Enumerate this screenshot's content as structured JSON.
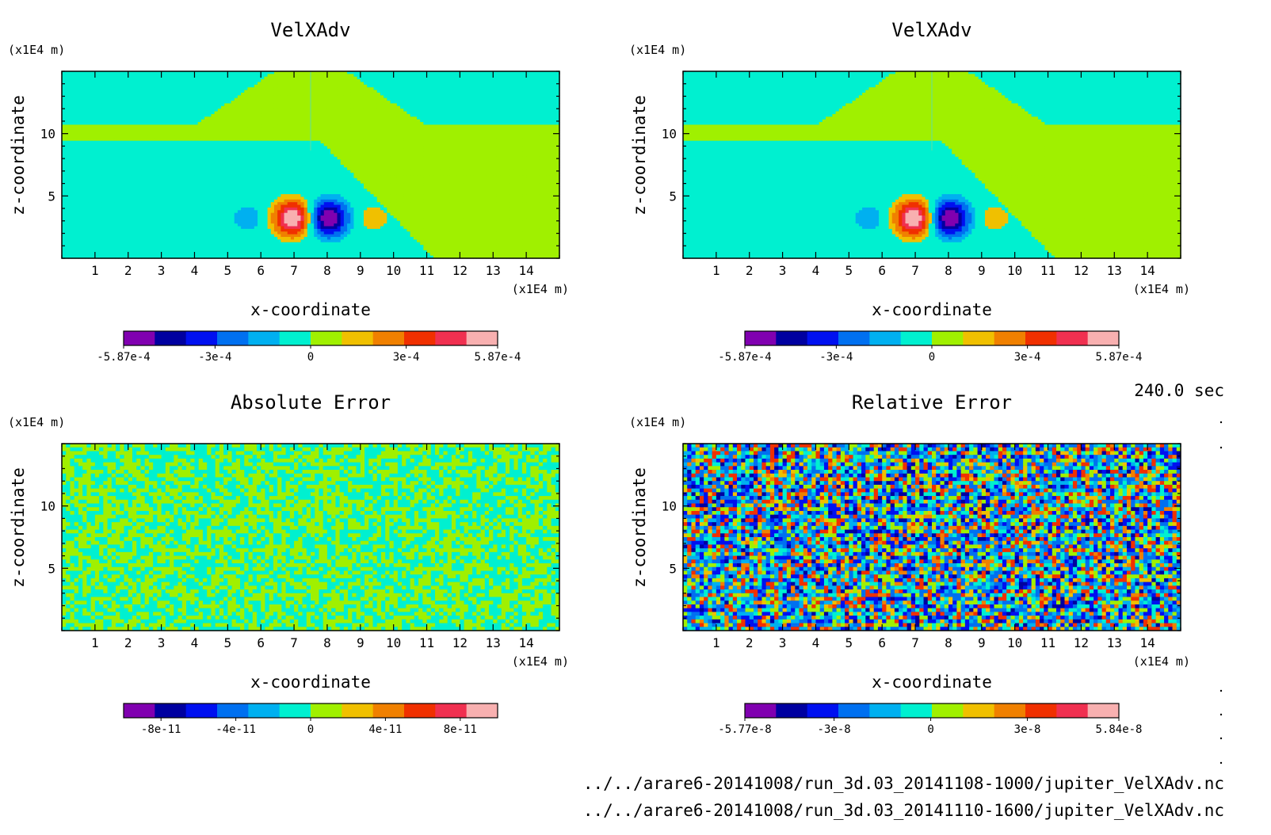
{
  "colormap_colors": [
    "#8000b0",
    "#0000a0",
    "#0010f0",
    "#0070f0",
    "#00b0f0",
    "#00f0d0",
    "#a0f000",
    "#f0c000",
    "#f08000",
    "#f03000",
    "#f03050",
    "#f8b0b0"
  ],
  "time_label": "240.0 sec",
  "file_paths": [
    "../../arare6-20141008/run_3d.03_20141108-1000/jupiter_VelXAdv.nc",
    "../../arare6-20141008/run_3d.03_20141110-1600/jupiter_VelXAdv.nc"
  ],
  "chart_data": [
    {
      "type": "heatmap",
      "title": "VelXAdv",
      "xlabel": "x-coordinate",
      "ylabel": "z-coordinate",
      "x_unit": "(x1E4 m)",
      "y_unit": "(x1E4 m)",
      "xlim": [
        0,
        15
      ],
      "ylim": [
        0,
        15
      ],
      "x_ticks": [
        1,
        2,
        3,
        4,
        5,
        6,
        7,
        8,
        9,
        10,
        11,
        12,
        13,
        14
      ],
      "y_ticks": [
        5,
        10
      ],
      "field": "velxadv",
      "colorbar": {
        "ticks": [
          -0.000587,
          -0.0003,
          0,
          0.0003,
          0.000587
        ],
        "labels": [
          "-5.87e-4",
          "-3e-4",
          "0",
          "3e-4",
          "5.87e-4"
        ],
        "range": [
          -0.000587,
          0.000587
        ]
      }
    },
    {
      "type": "heatmap",
      "title": "VelXAdv",
      "xlabel": "x-coordinate",
      "ylabel": "z-coordinate",
      "x_unit": "(x1E4 m)",
      "y_unit": "(x1E4 m)",
      "xlim": [
        0,
        15
      ],
      "ylim": [
        0,
        15
      ],
      "x_ticks": [
        1,
        2,
        3,
        4,
        5,
        6,
        7,
        8,
        9,
        10,
        11,
        12,
        13,
        14
      ],
      "y_ticks": [
        5,
        10
      ],
      "field": "velxadv",
      "colorbar": {
        "ticks": [
          -0.000587,
          -0.0003,
          0,
          0.0003,
          0.000587
        ],
        "labels": [
          "-5.87e-4",
          "-3e-4",
          "0",
          "3e-4",
          "5.87e-4"
        ],
        "range": [
          -0.000587,
          0.000587
        ]
      }
    },
    {
      "type": "heatmap",
      "title": "Absolute Error",
      "xlabel": "x-coordinate",
      "ylabel": "z-coordinate",
      "x_unit": "(x1E4 m)",
      "y_unit": "(x1E4 m)",
      "xlim": [
        0,
        15
      ],
      "ylim": [
        0,
        15
      ],
      "x_ticks": [
        1,
        2,
        3,
        4,
        5,
        6,
        7,
        8,
        9,
        10,
        11,
        12,
        13,
        14
      ],
      "y_ticks": [
        5,
        10
      ],
      "field": "abs_noise",
      "colorbar": {
        "ticks": [
          -8e-11,
          -4e-11,
          0,
          4e-11,
          8e-11
        ],
        "labels": [
          "-8e-11",
          "-4e-11",
          "0",
          "4e-11",
          "8e-11"
        ],
        "range": [
          -1e-10,
          1e-10
        ]
      }
    },
    {
      "type": "heatmap",
      "title": "Relative Error",
      "xlabel": "x-coordinate",
      "ylabel": "z-coordinate",
      "x_unit": "(x1E4 m)",
      "y_unit": "(x1E4 m)",
      "xlim": [
        0,
        15
      ],
      "ylim": [
        0,
        15
      ],
      "x_ticks": [
        1,
        2,
        3,
        4,
        5,
        6,
        7,
        8,
        9,
        10,
        11,
        12,
        13,
        14
      ],
      "y_ticks": [
        5,
        10
      ],
      "field": "rel_noise",
      "colorbar": {
        "ticks": [
          -5.77e-08,
          -3e-08,
          0,
          3e-08,
          5.84e-08
        ],
        "labels": [
          "-5.77e-8",
          "-3e-8",
          "0",
          "3e-8",
          "5.84e-8"
        ],
        "range": [
          -5.77e-08,
          5.84e-08
        ]
      }
    }
  ]
}
